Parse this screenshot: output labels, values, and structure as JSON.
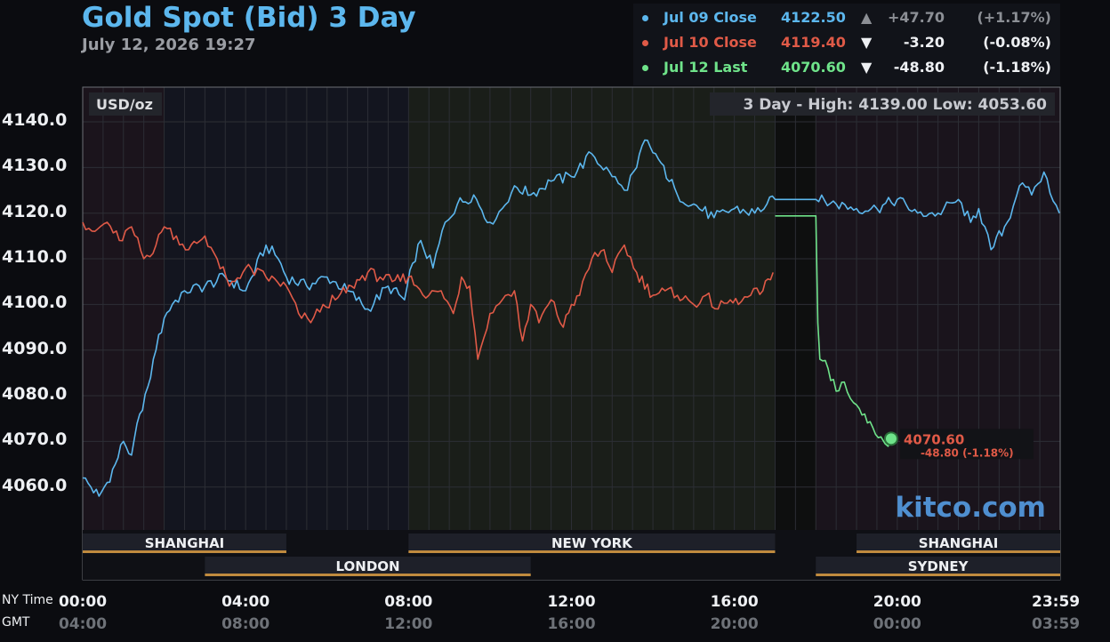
{
  "header": {
    "title": "Gold Spot (Bid) 3 Day",
    "timestamp": "July 12, 2026 19:27"
  },
  "legend": [
    {
      "label": "Jul 09 Close",
      "price": "4122.50",
      "arrow": "▲",
      "change": "+47.70",
      "pct": "(+1.17%)",
      "color": "#5cb7ee",
      "arrow_color": "#8c8f95",
      "change_color": "#8c8f95"
    },
    {
      "label": "Jul 10 Close",
      "price": "4119.40",
      "arrow": "▼",
      "change": "-3.20",
      "pct": "(-0.08%)",
      "color": "#e05a47",
      "arrow_color": "#eef0f3",
      "change_color": "#eef0f3"
    },
    {
      "label": "Jul 12 Last",
      "price": "4070.60",
      "arrow": "▼",
      "change": "-48.80",
      "pct": "(-1.18%)",
      "color": "#6fe38a",
      "arrow_color": "#eef0f3",
      "change_color": "#eef0f3"
    }
  ],
  "plot": {
    "unit_label": "USD/oz",
    "high_low_label": "3 Day - High: 4139.00  Low: 4053.60",
    "watermark": "kitco.com",
    "last_value_label": "4070.60",
    "last_change_label": "-48.80 (-1.18%)"
  },
  "axis": {
    "ny_label": "NY Time",
    "gmt_label": "GMT"
  },
  "markets": {
    "shanghai_1": "SHANGHAI",
    "london": "LONDON",
    "new_york": "NEW YORK",
    "shanghai_2": "SHANGHAI",
    "sydney": "SYDNEY"
  },
  "chart_data": {
    "type": "line",
    "title": "Gold Spot (Bid) 3 Day",
    "ylabel": "USD/oz",
    "ylim": [
      4050.6,
      4147.6
    ],
    "xlim": [
      0,
      24
    ],
    "yticks": [
      "4140.0",
      "4130.0",
      "4120.0",
      "4110.0",
      "4100.0",
      "4090.0",
      "4080.0",
      "4070.0",
      "4060.0"
    ],
    "ytick_values": [
      4140,
      4130,
      4120,
      4110,
      4100,
      4090,
      4080,
      4070,
      4060
    ],
    "xticks_ny": [
      "00:00",
      "04:00",
      "08:00",
      "12:00",
      "16:00",
      "20:00",
      "23:59"
    ],
    "xticks_gmt": [
      "04:00",
      "08:00",
      "12:00",
      "16:00",
      "20:00",
      "00:00",
      "03:59"
    ],
    "xtick_hours": [
      0,
      4,
      8,
      12,
      16,
      20,
      23.98
    ],
    "grid": true,
    "series": [
      {
        "name": "Jul 09 Close",
        "color": "#5cb7ee",
        "x": [
          0,
          0.2,
          0.4,
          0.6,
          0.8,
          1.0,
          1.2,
          1.4,
          1.6,
          1.8,
          2.0,
          2.2,
          2.5,
          3.0,
          3.5,
          4.0,
          4.5,
          4.8,
          5.0,
          5.5,
          6.0,
          6.5,
          7.0,
          7.5,
          7.9,
          8.1,
          8.3,
          8.6,
          8.9,
          9.2,
          9.6,
          10.0,
          10.3,
          10.6,
          11.0,
          11.5,
          12.0,
          12.5,
          13.0,
          13.3,
          13.6,
          13.8,
          14.2,
          14.6,
          15.0,
          15.5,
          16.0,
          16.5,
          16.8,
          17.0,
          18.0,
          18.5,
          19.0,
          19.5,
          20.0,
          20.5,
          21.0,
          21.5,
          21.8,
          22.0,
          22.3,
          22.7,
          23.0,
          23.3,
          23.6,
          23.98
        ],
        "y": [
          4062,
          4060,
          4058,
          4061,
          4065,
          4070,
          4067,
          4076,
          4082,
          4090,
          4097,
          4100,
          4103,
          4104,
          4106,
          4103,
          4113,
          4110,
          4106,
          4104,
          4106,
          4103,
          4099,
          4104,
          4101,
          4109,
          4114,
          4108,
          4118,
          4122,
          4124,
          4118,
          4121,
          4126,
          4124,
          4127,
          4128,
          4133,
          4128,
          4125,
          4130,
          4136,
          4131,
          4124,
          4122,
          4119,
          4121,
          4120,
          4122,
          4123,
          4123,
          4122,
          4121,
          4121,
          4123,
          4120,
          4120,
          4123,
          4118,
          4121,
          4112,
          4118,
          4126,
          4124,
          4129,
          4120
        ]
      },
      {
        "name": "Jul 10 Close",
        "color": "#e05a47",
        "x": [
          0,
          0.3,
          0.6,
          0.9,
          1.2,
          1.5,
          1.8,
          2.0,
          2.3,
          2.6,
          3.0,
          3.3,
          3.6,
          4.0,
          4.5,
          5.0,
          5.3,
          5.6,
          5.9,
          6.2,
          6.6,
          7.0,
          7.3,
          7.6,
          8.0,
          8.2,
          8.5,
          8.8,
          9.1,
          9.3,
          9.5,
          9.7,
          10.0,
          10.3,
          10.6,
          10.8,
          11.0,
          11.2,
          11.5,
          11.8,
          12.0,
          12.2,
          12.5,
          12.8,
          13.0,
          13.3,
          13.6,
          14.0,
          14.3,
          14.6,
          15.0,
          15.3,
          15.6,
          15.9,
          16.1,
          16.4,
          16.7,
          16.95
        ],
        "y": [
          4118,
          4116,
          4118,
          4114,
          4117,
          4110,
          4113,
          4117,
          4115,
          4112,
          4115,
          4110,
          4104,
          4108,
          4106,
          4104,
          4098,
          4096,
          4100,
          4101,
          4104,
          4107,
          4106,
          4105,
          4106,
          4104,
          4102,
          4103,
          4098,
          4106,
          4104,
          4088,
          4098,
          4101,
          4103,
          4092,
          4100,
          4096,
          4101,
          4095,
          4100,
          4102,
          4110,
          4112,
          4107,
          4113,
          4107,
          4102,
          4103,
          4102,
          4100,
          4102,
          4099,
          4101,
          4100,
          4102,
          4103,
          4107
        ]
      },
      {
        "name": "Jul 12 Last",
        "color": "#6fe38a",
        "x": [
          17,
          18,
          18.05,
          18.1,
          18.3,
          18.5,
          18.7,
          19.0,
          19.2,
          19.4,
          19.6,
          19.7,
          19.85
        ],
        "y": [
          4119.4,
          4119.4,
          4096,
          4088,
          4086,
          4081,
          4083,
          4078,
          4076,
          4073,
          4071,
          4069.5,
          4070.6
        ]
      }
    ]
  }
}
